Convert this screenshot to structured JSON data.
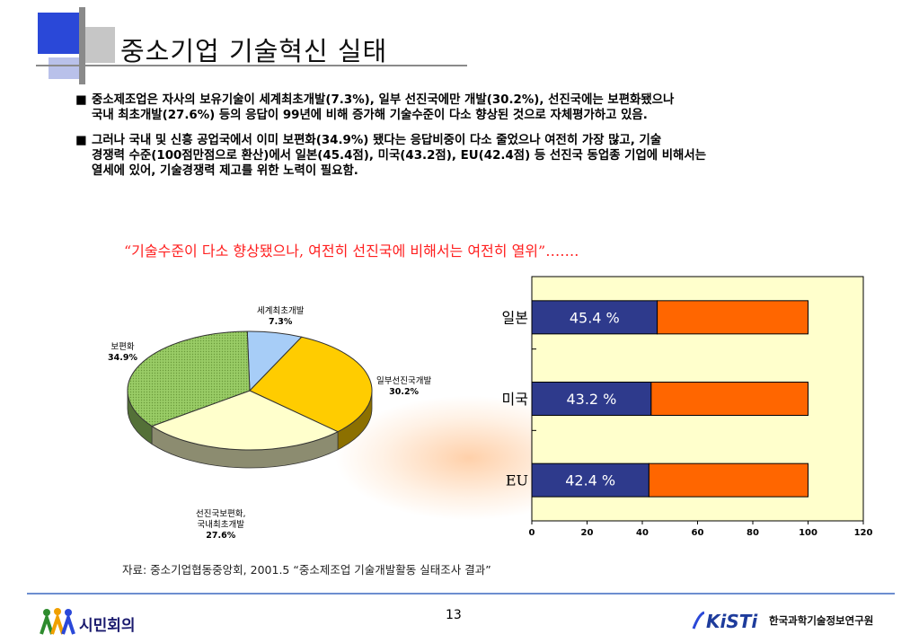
{
  "page": {
    "title": "중소기업 기술혁신 실태",
    "bullets": [
      "중소제조업은 자사의 보유기술이 세계최초개발(7.3%), 일부 선진국에만 개발(30.2%), 선진국에는 보편화됐으나\n국내  최초개발(27.6%) 등의 응답이 99년에 비해 증가해 기술수준이 다소 향상된 것으로 자체평가하고 있음.",
      "그러나 국내 및 신흥 공업국에서 이미 보편화(34.9%) 됐다는 응답비중이  다소 줄었으나 여전히 가장 많고,  기술\n경쟁력 수준(100점만점으로 환산)에서 일본(45.4점), 미국(43.2점), EU(42.4점) 등 선진국 동업종 기업에 비해서는\n열세에 있어, 기술경쟁력 제고를 위한 노력이  필요함."
    ],
    "bullet_mark": "■",
    "quote": "“기술수준이 다소 향상됐으나, 여전히 선진국에 비해서는 여전히 열위”…….",
    "source": "자료: 중소기업협동중앙회, 2001.5  “중소제조업 기술개발활동 실태조사 결과”",
    "page_number": "13",
    "footer_left_logo_text": "시민회의",
    "footer_right_logo_text": "KiSTi",
    "footer_right_org": "한국과학기술정보연구원"
  },
  "chart_data": [
    {
      "type": "pie",
      "slices": [
        {
          "label": "세계최초개발",
          "value": 7.3,
          "value_label": "7.3%",
          "color": "#a7cdf7"
        },
        {
          "label": "일부선진국개발",
          "value": 30.2,
          "value_label": "30.2%",
          "color": "#ffcc00"
        },
        {
          "label": "선진국보편화,\n국내최초개발",
          "value": 27.6,
          "value_label": "27.6%",
          "color": "#ffffcc"
        },
        {
          "label": "보편화",
          "value": 34.9,
          "value_label": "34.9%",
          "color": "#99cc66"
        }
      ]
    },
    {
      "type": "bar",
      "orientation": "horizontal",
      "stacked": true,
      "categories": [
        "일본",
        "미국",
        "EU"
      ],
      "series": [
        {
          "values": [
            45.4,
            43.2,
            42.4
          ],
          "color": "#2e3a8c",
          "labels": [
            "45.4 %",
            "43.2 %",
            "42.4 %"
          ]
        },
        {
          "values": [
            54.6,
            56.8,
            57.6
          ],
          "color": "#ff6600"
        }
      ],
      "xlim": [
        0,
        120
      ],
      "xticks": [
        "0",
        "20",
        "40",
        "60",
        "80",
        "100",
        "120"
      ],
      "background": "#ffffcc",
      "grid": false
    }
  ]
}
